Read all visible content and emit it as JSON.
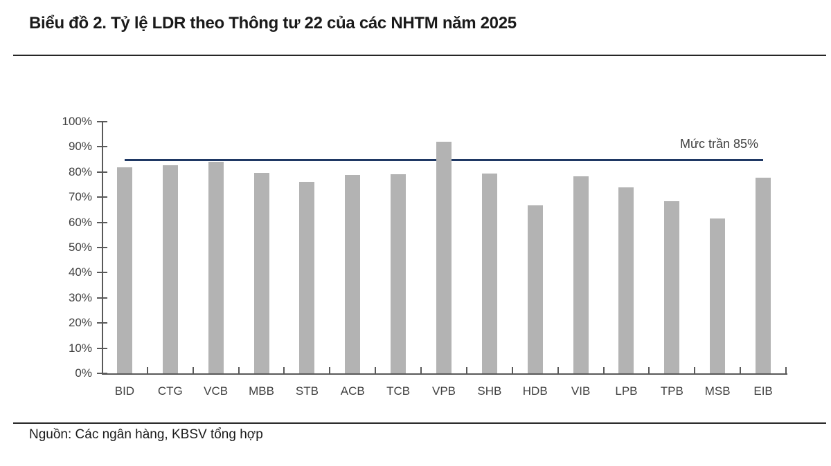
{
  "title": "Biểu đồ 2. Tỷ lệ LDR theo Thông tư 22 của các NHTM năm 2025",
  "source": "Nguồn: Các ngân hàng, KBSV tổng hợp",
  "chart_data": {
    "type": "bar",
    "title": "Biểu đồ 2. Tỷ lệ LDR theo Thông tư 22 của các NHTM năm 2025",
    "categories": [
      "BID",
      "CTG",
      "VCB",
      "MBB",
      "STB",
      "ACB",
      "TCB",
      "VPB",
      "SHB",
      "HDB",
      "VIB",
      "LPB",
      "TPB",
      "MSB",
      "EIB"
    ],
    "values": [
      82.0,
      82.8,
      84.0,
      79.7,
      76.2,
      78.8,
      79.0,
      92.1,
      79.5,
      66.8,
      78.3,
      73.9,
      68.5,
      61.5,
      77.7
    ],
    "xlabel": "",
    "ylabel": "",
    "ylim": [
      0,
      100
    ],
    "ytick_step": 10,
    "ytick_suffix": "%",
    "grid": "off",
    "legend": "none",
    "reference_line": {
      "value": 85,
      "label": "Mức trần 85%"
    },
    "colors": {
      "bar": "#b3b3b3",
      "reference_line": "#1f3864",
      "axis": "#595959",
      "tick_label": "#404040",
      "title": "#1a1a1a"
    }
  }
}
